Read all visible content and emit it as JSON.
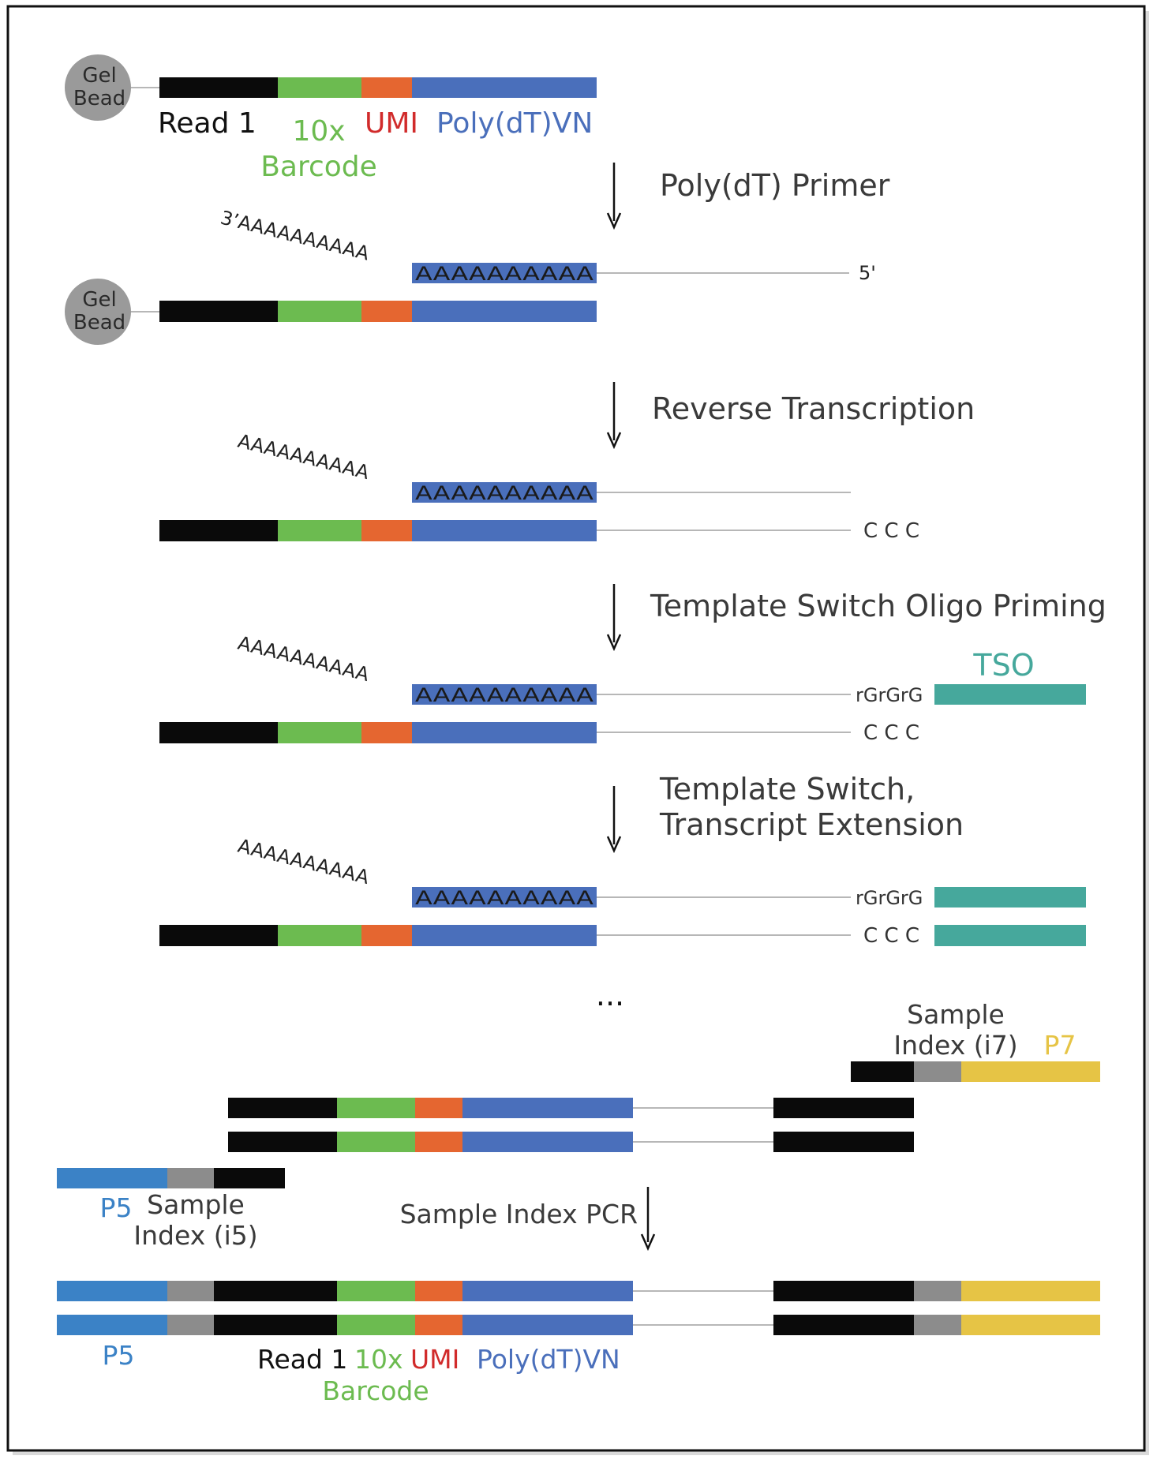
{
  "colors": {
    "black": "#0a0a0a",
    "green": "#6cbb50",
    "orange": "#e56630",
    "blue": "#4a6fbb",
    "teal": "#46a89c",
    "gray": "#8c8c8c",
    "yellow": "#e6c445",
    "p5_blue": "#3b82c6",
    "line_gray": "#b7b7b7",
    "bead_gray": "#9a9a9a",
    "umi_red": "#d12b2b",
    "text_dark": "#3a3a3a"
  },
  "bead": {
    "line1": "Gel",
    "line2": "Bead"
  },
  "legend_top": {
    "read1": "Read 1",
    "barcode_l1": "10x",
    "barcode_l2": "Barcode",
    "umi": "UMI",
    "polydtvn": "Poly(dT)VN"
  },
  "steps": {
    "poly_dt_primer": "Poly(dT) Primer",
    "reverse_transcription": "Reverse Transcription",
    "tso_priming": "Template Switch Oligo Priming",
    "template_switch_l1": "Template Switch,",
    "template_switch_l2": "Transcript Extension",
    "sample_index_pcr": "Sample Index PCR"
  },
  "sequence": {
    "polyA_block": "AAAAAAAAAA",
    "polyA_tail": "AAAAAAAAAA",
    "polyA_tail_first": "3’AAAAAAAAAA",
    "five_prime": "5'",
    "ccc": "C C C",
    "rgrgrg": "rGrGrG",
    "tso": "TSO"
  },
  "ellipsis": "...",
  "adapters": {
    "sample_index_i7_l1": "Sample",
    "sample_index_i7_l2": "Index (i7)",
    "p7": "P7",
    "p5": "P5",
    "sample_index_i5_l1": "Sample",
    "sample_index_i5_l2": "Index (i5)"
  },
  "legend_bottom": {
    "p5": "P5",
    "read1": "Read 1",
    "barcode_l1": "10x",
    "barcode_l2": "Barcode",
    "umi": "UMI",
    "polydtvn": "Poly(dT)VN"
  }
}
